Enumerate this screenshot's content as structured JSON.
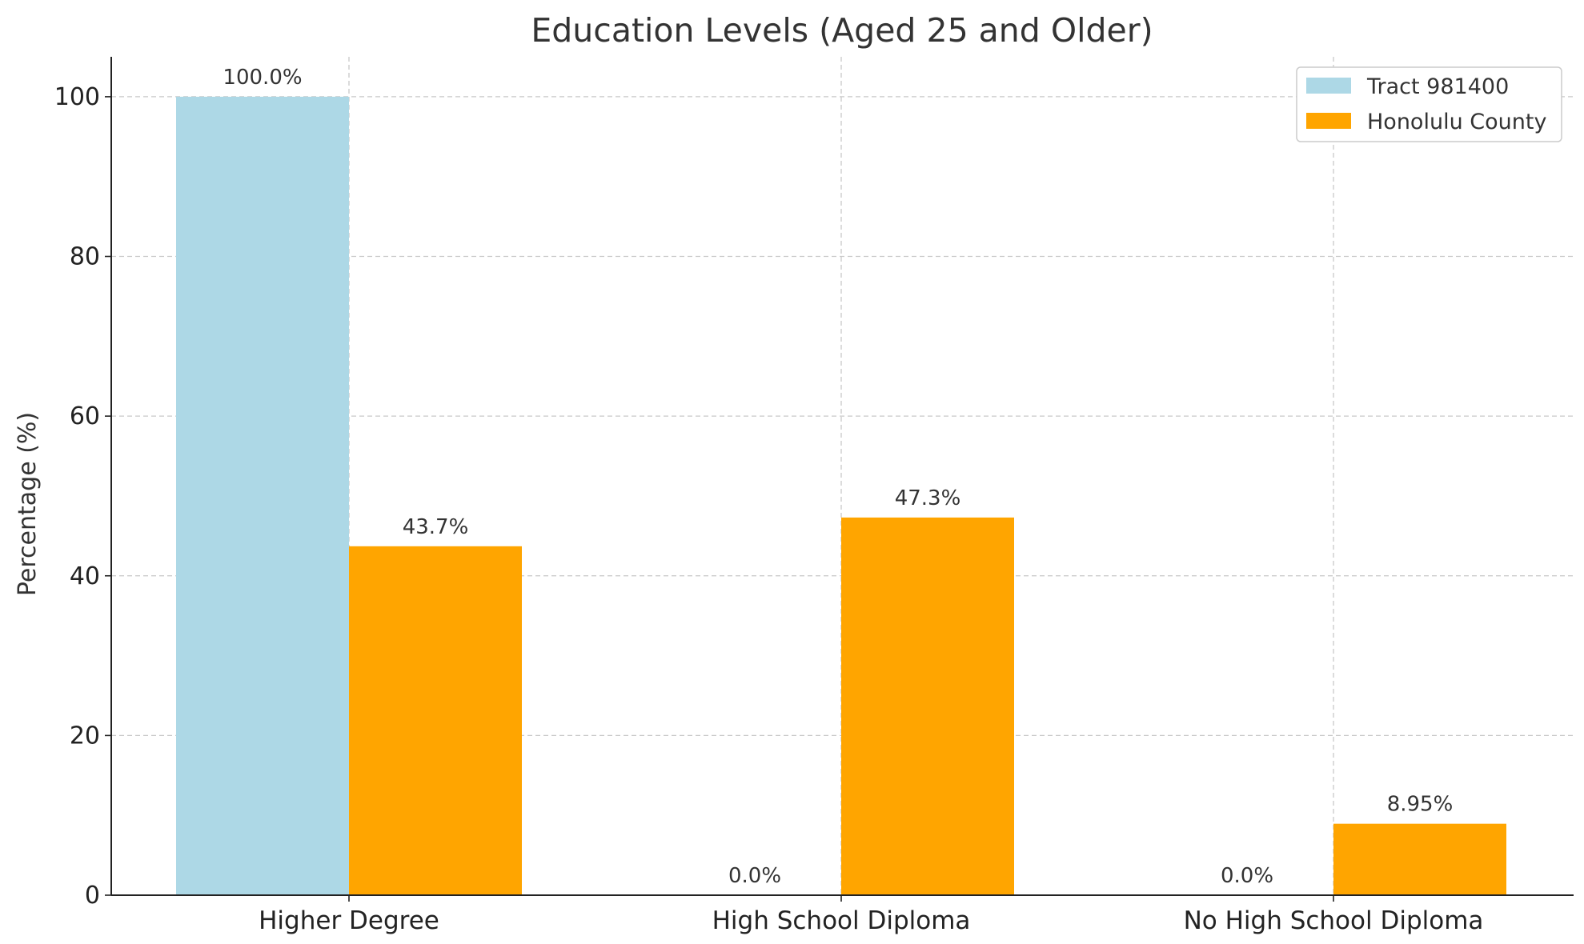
{
  "chart_data": {
    "type": "bar",
    "title": "Education Levels (Aged 25 and Older)",
    "xlabel": "",
    "ylabel": "Percentage (%)",
    "categories": [
      "Higher Degree",
      "High School Diploma",
      "No High School Diploma"
    ],
    "series": [
      {
        "name": "Tract 981400",
        "color": "#add8e6",
        "values": [
          100.0,
          0.0,
          0.0
        ],
        "labels": [
          "100.0%",
          "0.0%",
          "0.0%"
        ]
      },
      {
        "name": "Honolulu County",
        "color": "#ffa500",
        "values": [
          43.7,
          47.3,
          8.95
        ],
        "labels": [
          "43.7%",
          "47.3%",
          "8.95%"
        ]
      }
    ],
    "ylim": [
      0,
      105
    ],
    "yticks": [
      0,
      20,
      40,
      60,
      80,
      100
    ],
    "grid": true,
    "legend_position": "top-right"
  }
}
